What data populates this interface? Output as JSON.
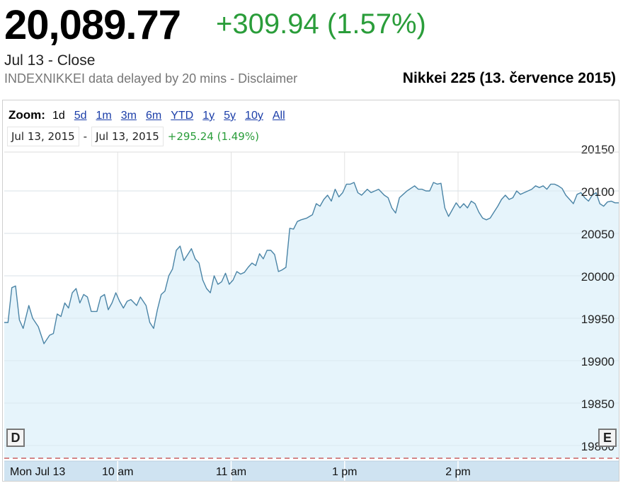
{
  "quote": {
    "price": "20,089.77",
    "change": "+309.94 (1.57%)",
    "close_label": "Jul 13 - Close",
    "delay_notice": "INDEXNIKKEI data delayed by 20 mins - Disclaimer"
  },
  "zoom": {
    "label": "Zoom:",
    "options": [
      "1d",
      "5d",
      "1m",
      "3m",
      "6m",
      "YTD",
      "1y",
      "5y",
      "10y",
      "All"
    ],
    "active": "1d"
  },
  "range": {
    "start": "Jul 13, 2015",
    "separator": "-",
    "end": "Jul 13, 2015",
    "change": "+295.24 (1.49%)"
  },
  "handles": {
    "left": "D",
    "right": "E"
  },
  "colors": {
    "line": "#4a84a6",
    "fill": "#e6f4fb",
    "positive": "#2a9d3a",
    "axis_bar": "#cfe3f1",
    "reference_line": "#c04040"
  },
  "chart_data": {
    "type": "area",
    "title": "Nikkei 225 (13. července 2015)",
    "x_axis": {
      "min": 0,
      "max": 325,
      "tick_positions": [
        0,
        60,
        120,
        180,
        240
      ],
      "tick_labels": [
        "Mon Jul 13",
        "10 am",
        "11 am",
        "1 pm",
        "2 pm"
      ]
    },
    "y_axis": {
      "min": 19800,
      "max": 20150,
      "ticks": [
        19800,
        19850,
        19900,
        19950,
        20000,
        20050,
        20100,
        20150
      ],
      "tick_labels": [
        "19800",
        "19850",
        "19900",
        "19950",
        "20000",
        "20050",
        "20100",
        "20150"
      ],
      "position": "right"
    },
    "grid": true,
    "reference_value": 19795,
    "series": [
      {
        "values": [
          [
            0,
            19945
          ],
          [
            2,
            19945
          ],
          [
            4,
            19986
          ],
          [
            6,
            19988
          ],
          [
            8,
            19948
          ],
          [
            10,
            19938
          ],
          [
            13,
            19965
          ],
          [
            15,
            19950
          ],
          [
            18,
            19940
          ],
          [
            21,
            19920
          ],
          [
            24,
            19930
          ],
          [
            26,
            19932
          ],
          [
            28,
            19955
          ],
          [
            30,
            19952
          ],
          [
            32,
            19968
          ],
          [
            34,
            19962
          ],
          [
            36,
            19980
          ],
          [
            38,
            19985
          ],
          [
            40,
            19968
          ],
          [
            42,
            19978
          ],
          [
            44,
            19975
          ],
          [
            46,
            19958
          ],
          [
            49,
            19958
          ],
          [
            51,
            19975
          ],
          [
            53,
            19978
          ],
          [
            55,
            19960
          ],
          [
            57,
            19968
          ],
          [
            59,
            19980
          ],
          [
            61,
            19970
          ],
          [
            63,
            19962
          ],
          [
            65,
            19970
          ],
          [
            67,
            19972
          ],
          [
            70,
            19965
          ],
          [
            72,
            19975
          ],
          [
            75,
            19965
          ],
          [
            77,
            19945
          ],
          [
            79,
            19938
          ],
          [
            81,
            19960
          ],
          [
            83,
            19978
          ],
          [
            85,
            19982
          ],
          [
            87,
            20000
          ],
          [
            89,
            20008
          ],
          [
            91,
            20030
          ],
          [
            93,
            20035
          ],
          [
            95,
            20018
          ],
          [
            97,
            20025
          ],
          [
            99,
            20032
          ],
          [
            101,
            20020
          ],
          [
            103,
            20015
          ],
          [
            105,
            19995
          ],
          [
            107,
            19985
          ],
          [
            109,
            19980
          ],
          [
            111,
            20000
          ],
          [
            113,
            19990
          ],
          [
            115,
            19993
          ],
          [
            117,
            20003
          ],
          [
            119,
            19990
          ],
          [
            121,
            19995
          ],
          [
            123,
            20005
          ],
          [
            125,
            20002
          ],
          [
            127,
            20004
          ],
          [
            129,
            20010
          ],
          [
            131,
            20015
          ],
          [
            133,
            20012
          ],
          [
            135,
            20026
          ],
          [
            137,
            20020
          ],
          [
            139,
            20030
          ],
          [
            141,
            20030
          ],
          [
            143,
            20025
          ],
          [
            145,
            20005
          ],
          [
            147,
            20007
          ],
          [
            149,
            20010
          ],
          [
            151,
            20056
          ],
          [
            153,
            20055
          ],
          [
            155,
            20064
          ],
          [
            157,
            20066
          ],
          [
            160,
            20068
          ],
          [
            163,
            20072
          ],
          [
            165,
            20085
          ],
          [
            167,
            20082
          ],
          [
            169,
            20090
          ],
          [
            171,
            20095
          ],
          [
            173,
            20088
          ],
          [
            175,
            20102
          ],
          [
            177,
            20093
          ],
          [
            179,
            20098
          ],
          [
            181,
            20108
          ],
          [
            183,
            20108
          ],
          [
            185,
            20110
          ],
          [
            187,
            20098
          ],
          [
            189,
            20095
          ],
          [
            192,
            20102
          ],
          [
            194,
            20098
          ],
          [
            196,
            20100
          ],
          [
            198,
            20102
          ],
          [
            201,
            20095
          ],
          [
            203,
            20092
          ],
          [
            205,
            20080
          ],
          [
            207,
            20074
          ],
          [
            209,
            20092
          ],
          [
            211,
            20096
          ],
          [
            213,
            20100
          ],
          [
            215,
            20103
          ],
          [
            217,
            20106
          ],
          [
            219,
            20102
          ],
          [
            221,
            20102
          ],
          [
            223,
            20100
          ],
          [
            225,
            20100
          ],
          [
            227,
            20110
          ],
          [
            229,
            20108
          ],
          [
            231,
            20109
          ],
          [
            233,
            20080
          ],
          [
            235,
            20070
          ],
          [
            237,
            20078
          ],
          [
            239,
            20086
          ],
          [
            241,
            20080
          ],
          [
            243,
            20085
          ],
          [
            245,
            20080
          ],
          [
            247,
            20088
          ],
          [
            249,
            20085
          ],
          [
            251,
            20075
          ],
          [
            253,
            20068
          ],
          [
            255,
            20066
          ],
          [
            257,
            20068
          ],
          [
            259,
            20075
          ],
          [
            261,
            20082
          ],
          [
            263,
            20090
          ],
          [
            265,
            20095
          ],
          [
            267,
            20090
          ],
          [
            269,
            20092
          ],
          [
            271,
            20100
          ],
          [
            273,
            20096
          ],
          [
            275,
            20098
          ],
          [
            277,
            20100
          ],
          [
            279,
            20102
          ],
          [
            281,
            20106
          ],
          [
            283,
            20104
          ],
          [
            285,
            20106
          ],
          [
            287,
            20102
          ],
          [
            289,
            20108
          ],
          [
            291,
            20108
          ],
          [
            293,
            20106
          ],
          [
            295,
            20103
          ],
          [
            297,
            20095
          ],
          [
            299,
            20090
          ],
          [
            301,
            20085
          ],
          [
            303,
            20096
          ],
          [
            305,
            20098
          ],
          [
            307,
            20092
          ],
          [
            309,
            20088
          ],
          [
            311,
            20095
          ],
          [
            313,
            20098
          ],
          [
            315,
            20085
          ],
          [
            317,
            20082
          ],
          [
            319,
            20087
          ],
          [
            321,
            20088
          ],
          [
            323,
            20086
          ],
          [
            325,
            20086
          ]
        ]
      }
    ]
  }
}
